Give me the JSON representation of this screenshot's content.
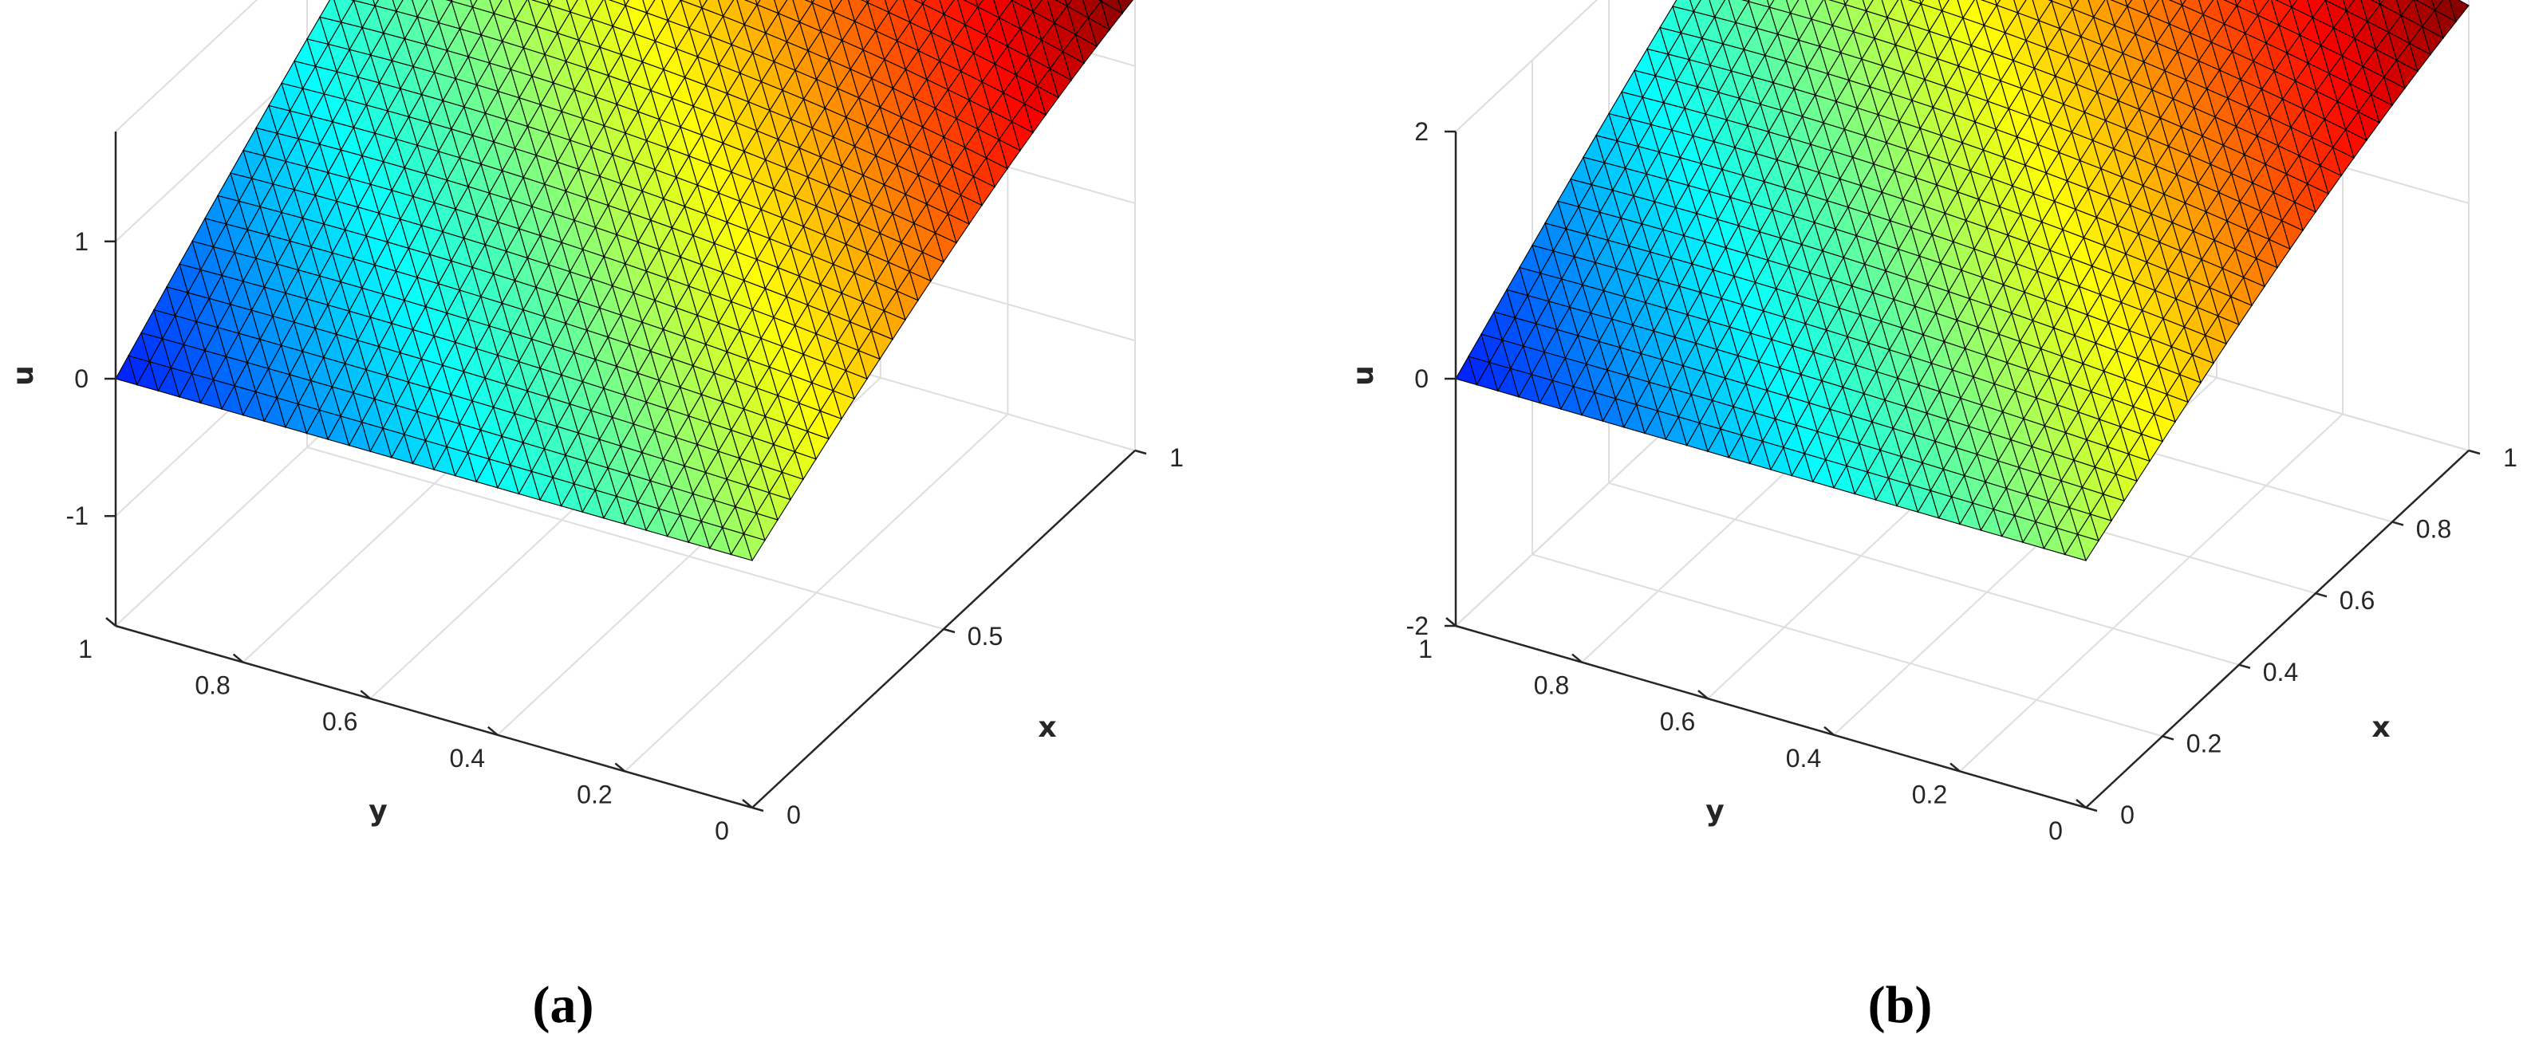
{
  "figure": {
    "panels": [
      {
        "id": "a",
        "label": "(a)"
      },
      {
        "id": "b",
        "label": "(b)"
      }
    ]
  },
  "chart_data": [
    {
      "type": "surface",
      "panel": "(a)",
      "xlabel": "x",
      "ylabel": "y",
      "zlabel": "u",
      "xlim": [
        0,
        1
      ],
      "ylim": [
        0,
        1
      ],
      "zlim": [
        -1.8,
        1.8
      ],
      "x_ticks": [
        "0",
        "0.5",
        "1"
      ],
      "y_ticks": [
        "0",
        "0.2",
        "0.4",
        "0.6",
        "0.8",
        "1"
      ],
      "z_ticks": [
        "-1",
        "0",
        "1"
      ],
      "grid": true,
      "colormap": "jet",
      "mesh": "triangular",
      "surface_corners": [
        {
          "x": 0,
          "y": 0,
          "u": 0
        },
        {
          "x": 1,
          "y": 0,
          "u": 0.9
        },
        {
          "x": 0,
          "y": 1,
          "u": 0
        },
        {
          "x": 1,
          "y": 1,
          "u": 1.7
        }
      ]
    },
    {
      "type": "surface",
      "panel": "(b)",
      "xlabel": "x",
      "ylabel": "y",
      "zlabel": "u",
      "xlim": [
        0,
        1
      ],
      "ylim": [
        0,
        1
      ],
      "zlim": [
        -2,
        2
      ],
      "x_ticks": [
        "0",
        "0.2",
        "0.4",
        "0.6",
        "0.8",
        "1"
      ],
      "y_ticks": [
        "0",
        "0.2",
        "0.4",
        "0.6",
        "0.8",
        "1"
      ],
      "z_ticks": [
        "-2",
        "0",
        "2"
      ],
      "grid": true,
      "colormap": "jet",
      "mesh": "triangular",
      "surface_corners": [
        {
          "x": 0,
          "y": 0,
          "u": 0
        },
        {
          "x": 1,
          "y": 0,
          "u": 1.0
        },
        {
          "x": 0,
          "y": 1,
          "u": 0
        },
        {
          "x": 1,
          "y": 1,
          "u": 1.8
        }
      ]
    }
  ]
}
